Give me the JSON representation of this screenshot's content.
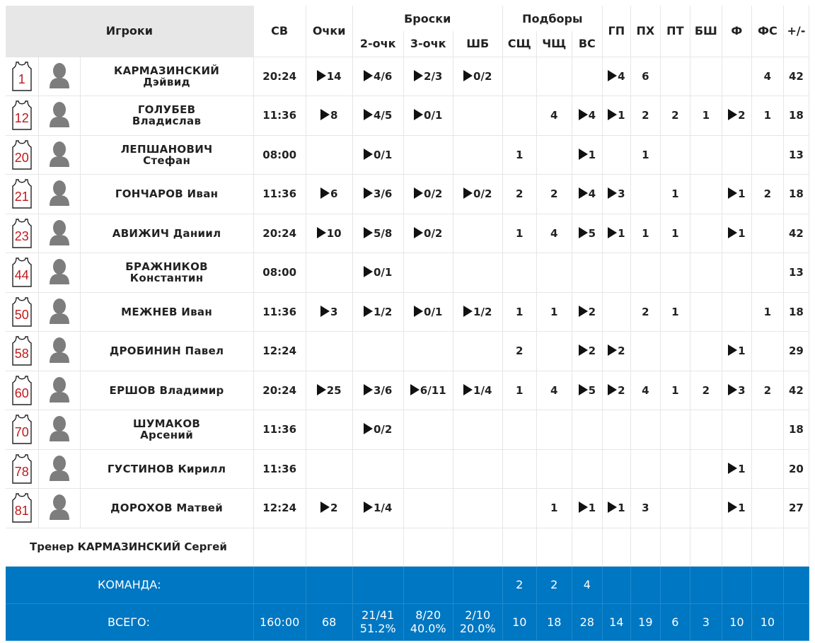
{
  "header": {
    "players": "Игроки",
    "minutes": "СВ",
    "points": "Очки",
    "shots": "Броски",
    "two": "2-очк",
    "three": "3-очк",
    "ft": "ШБ",
    "rebounds": "Подборы",
    "def": "СЩ",
    "off": "ЧЩ",
    "all": "ВС",
    "assists": "ГП",
    "steals": "ПХ",
    "turnovers": "ПТ",
    "blocks": "БШ",
    "fouls": "Ф",
    "fouls_drawn": "ФС",
    "plusminus": "+/-"
  },
  "players": [
    {
      "number": "1",
      "last": "КАРМАЗИНСКИЙ",
      "first": "Дэйвид",
      "min": "20:24",
      "pts": "14",
      "two": "4/6",
      "three": "2/3",
      "ft": "0/2",
      "dreb": "",
      "oreb": "",
      "reb": "",
      "ast": "4",
      "stl": "6",
      "to": "",
      "blk": "",
      "pf": "",
      "fd": "4",
      "pm": "42"
    },
    {
      "number": "12",
      "last": "ГОЛУБЕВ",
      "first": "Владислав",
      "min": "11:36",
      "pts": "8",
      "two": "4/5",
      "three": "0/1",
      "ft": "",
      "dreb": "",
      "oreb": "4",
      "reb": "4",
      "ast": "1",
      "stl": "2",
      "to": "2",
      "blk": "1",
      "pf": "2",
      "fd": "1",
      "pm": "18"
    },
    {
      "number": "20",
      "last": "ЛЕПШАНОВИЧ",
      "first": "Стефан",
      "min": "08:00",
      "pts": "",
      "two": "0/1",
      "three": "",
      "ft": "",
      "dreb": "1",
      "oreb": "",
      "reb": "1",
      "ast": "",
      "stl": "1",
      "to": "",
      "blk": "",
      "pf": "",
      "fd": "",
      "pm": "13"
    },
    {
      "number": "21",
      "last": "ГОНЧАРОВ Иван",
      "first": "",
      "min": "11:36",
      "pts": "6",
      "two": "3/6",
      "three": "0/2",
      "ft": "0/2",
      "dreb": "2",
      "oreb": "2",
      "reb": "4",
      "ast": "3",
      "stl": "",
      "to": "1",
      "blk": "",
      "pf": "1",
      "fd": "2",
      "pm": "18"
    },
    {
      "number": "23",
      "last": "АВИЖИЧ Даниил",
      "first": "",
      "min": "20:24",
      "pts": "10",
      "two": "5/8",
      "three": "0/2",
      "ft": "",
      "dreb": "1",
      "oreb": "4",
      "reb": "5",
      "ast": "1",
      "stl": "1",
      "to": "1",
      "blk": "",
      "pf": "1",
      "fd": "",
      "pm": "42"
    },
    {
      "number": "44",
      "last": "БРАЖНИКОВ",
      "first": "Константин",
      "min": "08:00",
      "pts": "",
      "two": "0/1",
      "three": "",
      "ft": "",
      "dreb": "",
      "oreb": "",
      "reb": "",
      "ast": "",
      "stl": "",
      "to": "",
      "blk": "",
      "pf": "",
      "fd": "",
      "pm": "13"
    },
    {
      "number": "50",
      "last": "МЕЖНЕВ Иван",
      "first": "",
      "min": "11:36",
      "pts": "3",
      "two": "1/2",
      "three": "0/1",
      "ft": "1/2",
      "dreb": "1",
      "oreb": "1",
      "reb": "2",
      "ast": "",
      "stl": "2",
      "to": "1",
      "blk": "",
      "pf": "",
      "fd": "1",
      "pm": "18"
    },
    {
      "number": "58",
      "last": "ДРОБИНИН Павел",
      "first": "",
      "min": "12:24",
      "pts": "",
      "two": "",
      "three": "",
      "ft": "",
      "dreb": "2",
      "oreb": "",
      "reb": "2",
      "ast": "2",
      "stl": "",
      "to": "",
      "blk": "",
      "pf": "1",
      "fd": "",
      "pm": "29"
    },
    {
      "number": "60",
      "last": "ЕРШОВ Владимир",
      "first": "",
      "min": "20:24",
      "pts": "25",
      "two": "3/6",
      "three": "6/11",
      "ft": "1/4",
      "dreb": "1",
      "oreb": "4",
      "reb": "5",
      "ast": "2",
      "stl": "4",
      "to": "1",
      "blk": "2",
      "pf": "3",
      "fd": "2",
      "pm": "42"
    },
    {
      "number": "70",
      "last": "ШУМАКОВ",
      "first": "Арсений",
      "min": "11:36",
      "pts": "",
      "two": "0/2",
      "three": "",
      "ft": "",
      "dreb": "",
      "oreb": "",
      "reb": "",
      "ast": "",
      "stl": "",
      "to": "",
      "blk": "",
      "pf": "",
      "fd": "",
      "pm": "18"
    },
    {
      "number": "78",
      "last": "ГУСТИНОВ Кирилл",
      "first": "",
      "min": "11:36",
      "pts": "",
      "two": "",
      "three": "",
      "ft": "",
      "dreb": "",
      "oreb": "",
      "reb": "",
      "ast": "",
      "stl": "",
      "to": "",
      "blk": "",
      "pf": "1",
      "fd": "",
      "pm": "20"
    },
    {
      "number": "81",
      "last": "ДОРОХОВ Матвей",
      "first": "",
      "min": "12:24",
      "pts": "2",
      "two": "1/4",
      "three": "",
      "ft": "",
      "dreb": "",
      "oreb": "1",
      "reb": "1",
      "ast": "1",
      "stl": "3",
      "to": "",
      "blk": "",
      "pf": "1",
      "fd": "",
      "pm": "27"
    }
  ],
  "play_icon_fields": [
    "pts",
    "two",
    "three",
    "ft",
    "reb",
    "ast",
    "pf"
  ],
  "coach": "Тренер КАРМАЗИНСКИЙ Сергей",
  "team": {
    "label": "КОМАНДА:",
    "dreb": "2",
    "oreb": "2",
    "reb": "4"
  },
  "total": {
    "label": "ВСЕГО:",
    "min": "160:00",
    "pts": "68",
    "two": "21/41",
    "two_pct": "51.2%",
    "three": "8/20",
    "three_pct": "40.0%",
    "ft": "2/10",
    "ft_pct": "20.0%",
    "dreb": "10",
    "oreb": "18",
    "reb": "28",
    "ast": "14",
    "stl": "19",
    "to": "6",
    "blk": "3",
    "pf": "10",
    "fd": "10"
  },
  "colors": {
    "accent": "#0077c2",
    "jersey_number": "#c0181b",
    "header_bg": "#e7e7e7"
  }
}
